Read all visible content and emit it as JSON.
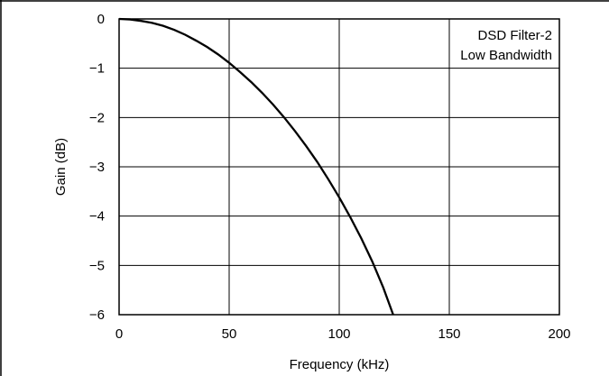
{
  "chart_data": {
    "type": "line",
    "xlabel": "Frequency (kHz)",
    "ylabel": "Gain (dB)",
    "xlim": [
      0,
      200
    ],
    "ylim": [
      -6,
      0
    ],
    "x_ticks": [
      0,
      50,
      100,
      150,
      200
    ],
    "y_ticks": [
      0,
      -1,
      -2,
      -3,
      -4,
      -5,
      -6
    ],
    "x_tick_labels": [
      "0",
      "50",
      "100",
      "150",
      "200"
    ],
    "y_tick_labels": [
      "0",
      "−1",
      "−2",
      "−3",
      "−4",
      "−5",
      "−6"
    ],
    "grid": true,
    "annotation_lines": [
      "DSD Filter-2",
      "Low Bandwidth"
    ],
    "annotation_position": "top-right",
    "series": [
      {
        "x": [
          0,
          5,
          10,
          15,
          20,
          25,
          30,
          35,
          40,
          45,
          50,
          55,
          60,
          65,
          70,
          75,
          80,
          85,
          90,
          95,
          100,
          105,
          110,
          115,
          120,
          124.5
        ],
        "y": [
          0,
          -0.01,
          -0.04,
          -0.08,
          -0.14,
          -0.22,
          -0.32,
          -0.44,
          -0.57,
          -0.72,
          -0.89,
          -1.08,
          -1.28,
          -1.5,
          -1.74,
          -2.0,
          -2.28,
          -2.58,
          -2.9,
          -3.25,
          -3.62,
          -4.02,
          -4.45,
          -4.92,
          -5.45,
          -6.0
        ]
      }
    ]
  }
}
